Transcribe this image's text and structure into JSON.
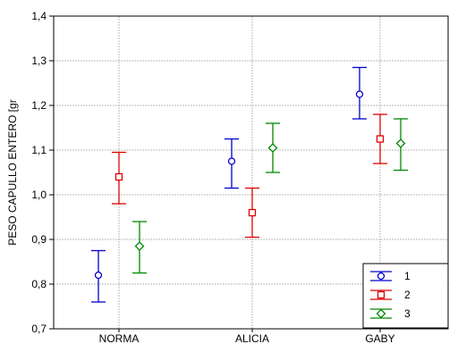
{
  "chart_data": {
    "type": "scatter",
    "subtype": "error-bar",
    "title": "",
    "xlabel": "",
    "ylabel": "PESO CAPULLO ENTERO [gr",
    "categories": [
      "NORMA",
      "ALICIA",
      "GABY"
    ],
    "ylim": [
      0.7,
      1.4
    ],
    "yticks": [
      "0,7",
      "0,8",
      "0,9",
      "1,0",
      "1,1",
      "1,2",
      "1,3",
      "1,4"
    ],
    "grid": true,
    "legend_position": "bottom-right",
    "series": [
      {
        "name": "1",
        "color": "#0000cc",
        "marker": "circle",
        "mean": [
          0.82,
          1.075,
          1.225
        ],
        "lower": [
          0.76,
          1.015,
          1.17
        ],
        "upper": [
          0.875,
          1.125,
          1.285
        ]
      },
      {
        "name": "2",
        "color": "#dd0000",
        "marker": "square",
        "mean": [
          1.04,
          0.96,
          1.125
        ],
        "lower": [
          0.98,
          0.905,
          1.07
        ],
        "upper": [
          1.095,
          1.015,
          1.18
        ]
      },
      {
        "name": "3",
        "color": "#008800",
        "marker": "diamond",
        "mean": [
          0.885,
          1.105,
          1.115
        ],
        "lower": [
          0.825,
          1.05,
          1.055
        ],
        "upper": [
          0.94,
          1.16,
          1.17
        ]
      }
    ]
  }
}
